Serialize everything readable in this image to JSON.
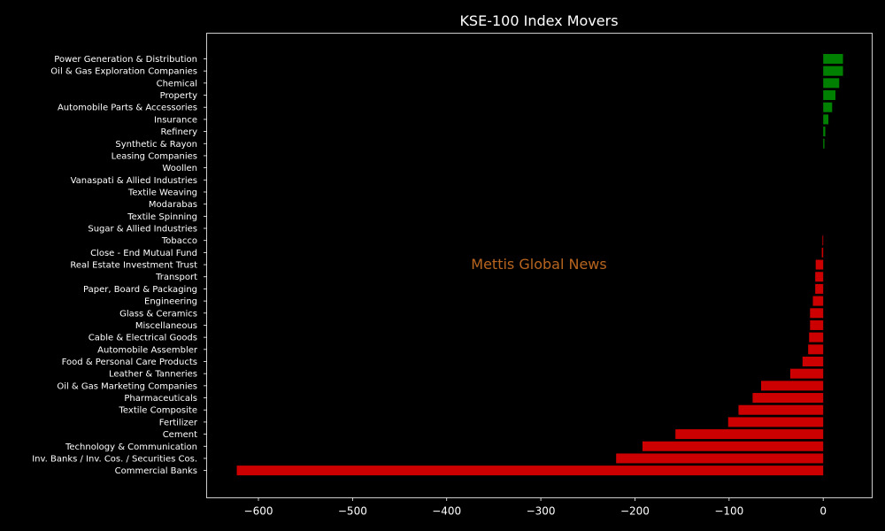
{
  "chart_data": {
    "type": "bar",
    "orientation": "horizontal",
    "title": "KSE-100 Index Movers",
    "xlabel": "",
    "ylabel": "",
    "xlim": [
      -655,
      52
    ],
    "xticks": [
      -600,
      -500,
      -400,
      -300,
      -200,
      -100,
      0
    ],
    "xtick_labels": [
      "−600",
      "−500",
      "−400",
      "−300",
      "−200",
      "−100",
      "0"
    ],
    "grid": false,
    "legend": "none",
    "categories": [
      "Power Generation & Distribution",
      "Oil & Gas Exploration Companies",
      "Chemical",
      "Property",
      "Automobile Parts & Accessories",
      "Insurance",
      "Refinery",
      "Synthetic & Rayon",
      "Leasing Companies",
      "Woollen",
      "Vanaspati & Allied Industries",
      "Textile Weaving",
      "Modarabas",
      "Textile Spinning",
      "Sugar & Allied Industries",
      "Tobacco",
      "Close - End Mutual Fund",
      "Real Estate Investment Trust",
      "Transport",
      "Paper, Board & Packaging",
      "Engineering",
      "Glass & Ceramics",
      "Miscellaneous",
      "Cable & Electrical Goods",
      "Automobile Assembler",
      "Food & Personal Care Products",
      "Leather & Tanneries",
      "Oil & Gas Marketing Companies",
      "Pharmaceuticals",
      "Textile Composite",
      "Fertilizer",
      "Cement",
      "Technology & Communication",
      "Inv. Banks / Inv. Cos. / Securities Cos.",
      "Commercial Banks"
    ],
    "values": [
      21,
      21,
      17,
      13,
      9.5,
      5.5,
      2.2,
      1.3,
      0,
      0,
      0,
      0,
      0,
      0,
      0,
      -0.8,
      -1.5,
      -8,
      -8.5,
      -8.5,
      -11,
      -14,
      -14,
      -15,
      -16,
      -22,
      -35,
      -66,
      -75,
      -90,
      -101,
      -157,
      -192,
      -220,
      -623
    ],
    "colors": {
      "positive": "#008000",
      "negative": "#cc0000"
    },
    "watermark": {
      "text": "Mettis Global News",
      "color": "#b8651f"
    }
  }
}
